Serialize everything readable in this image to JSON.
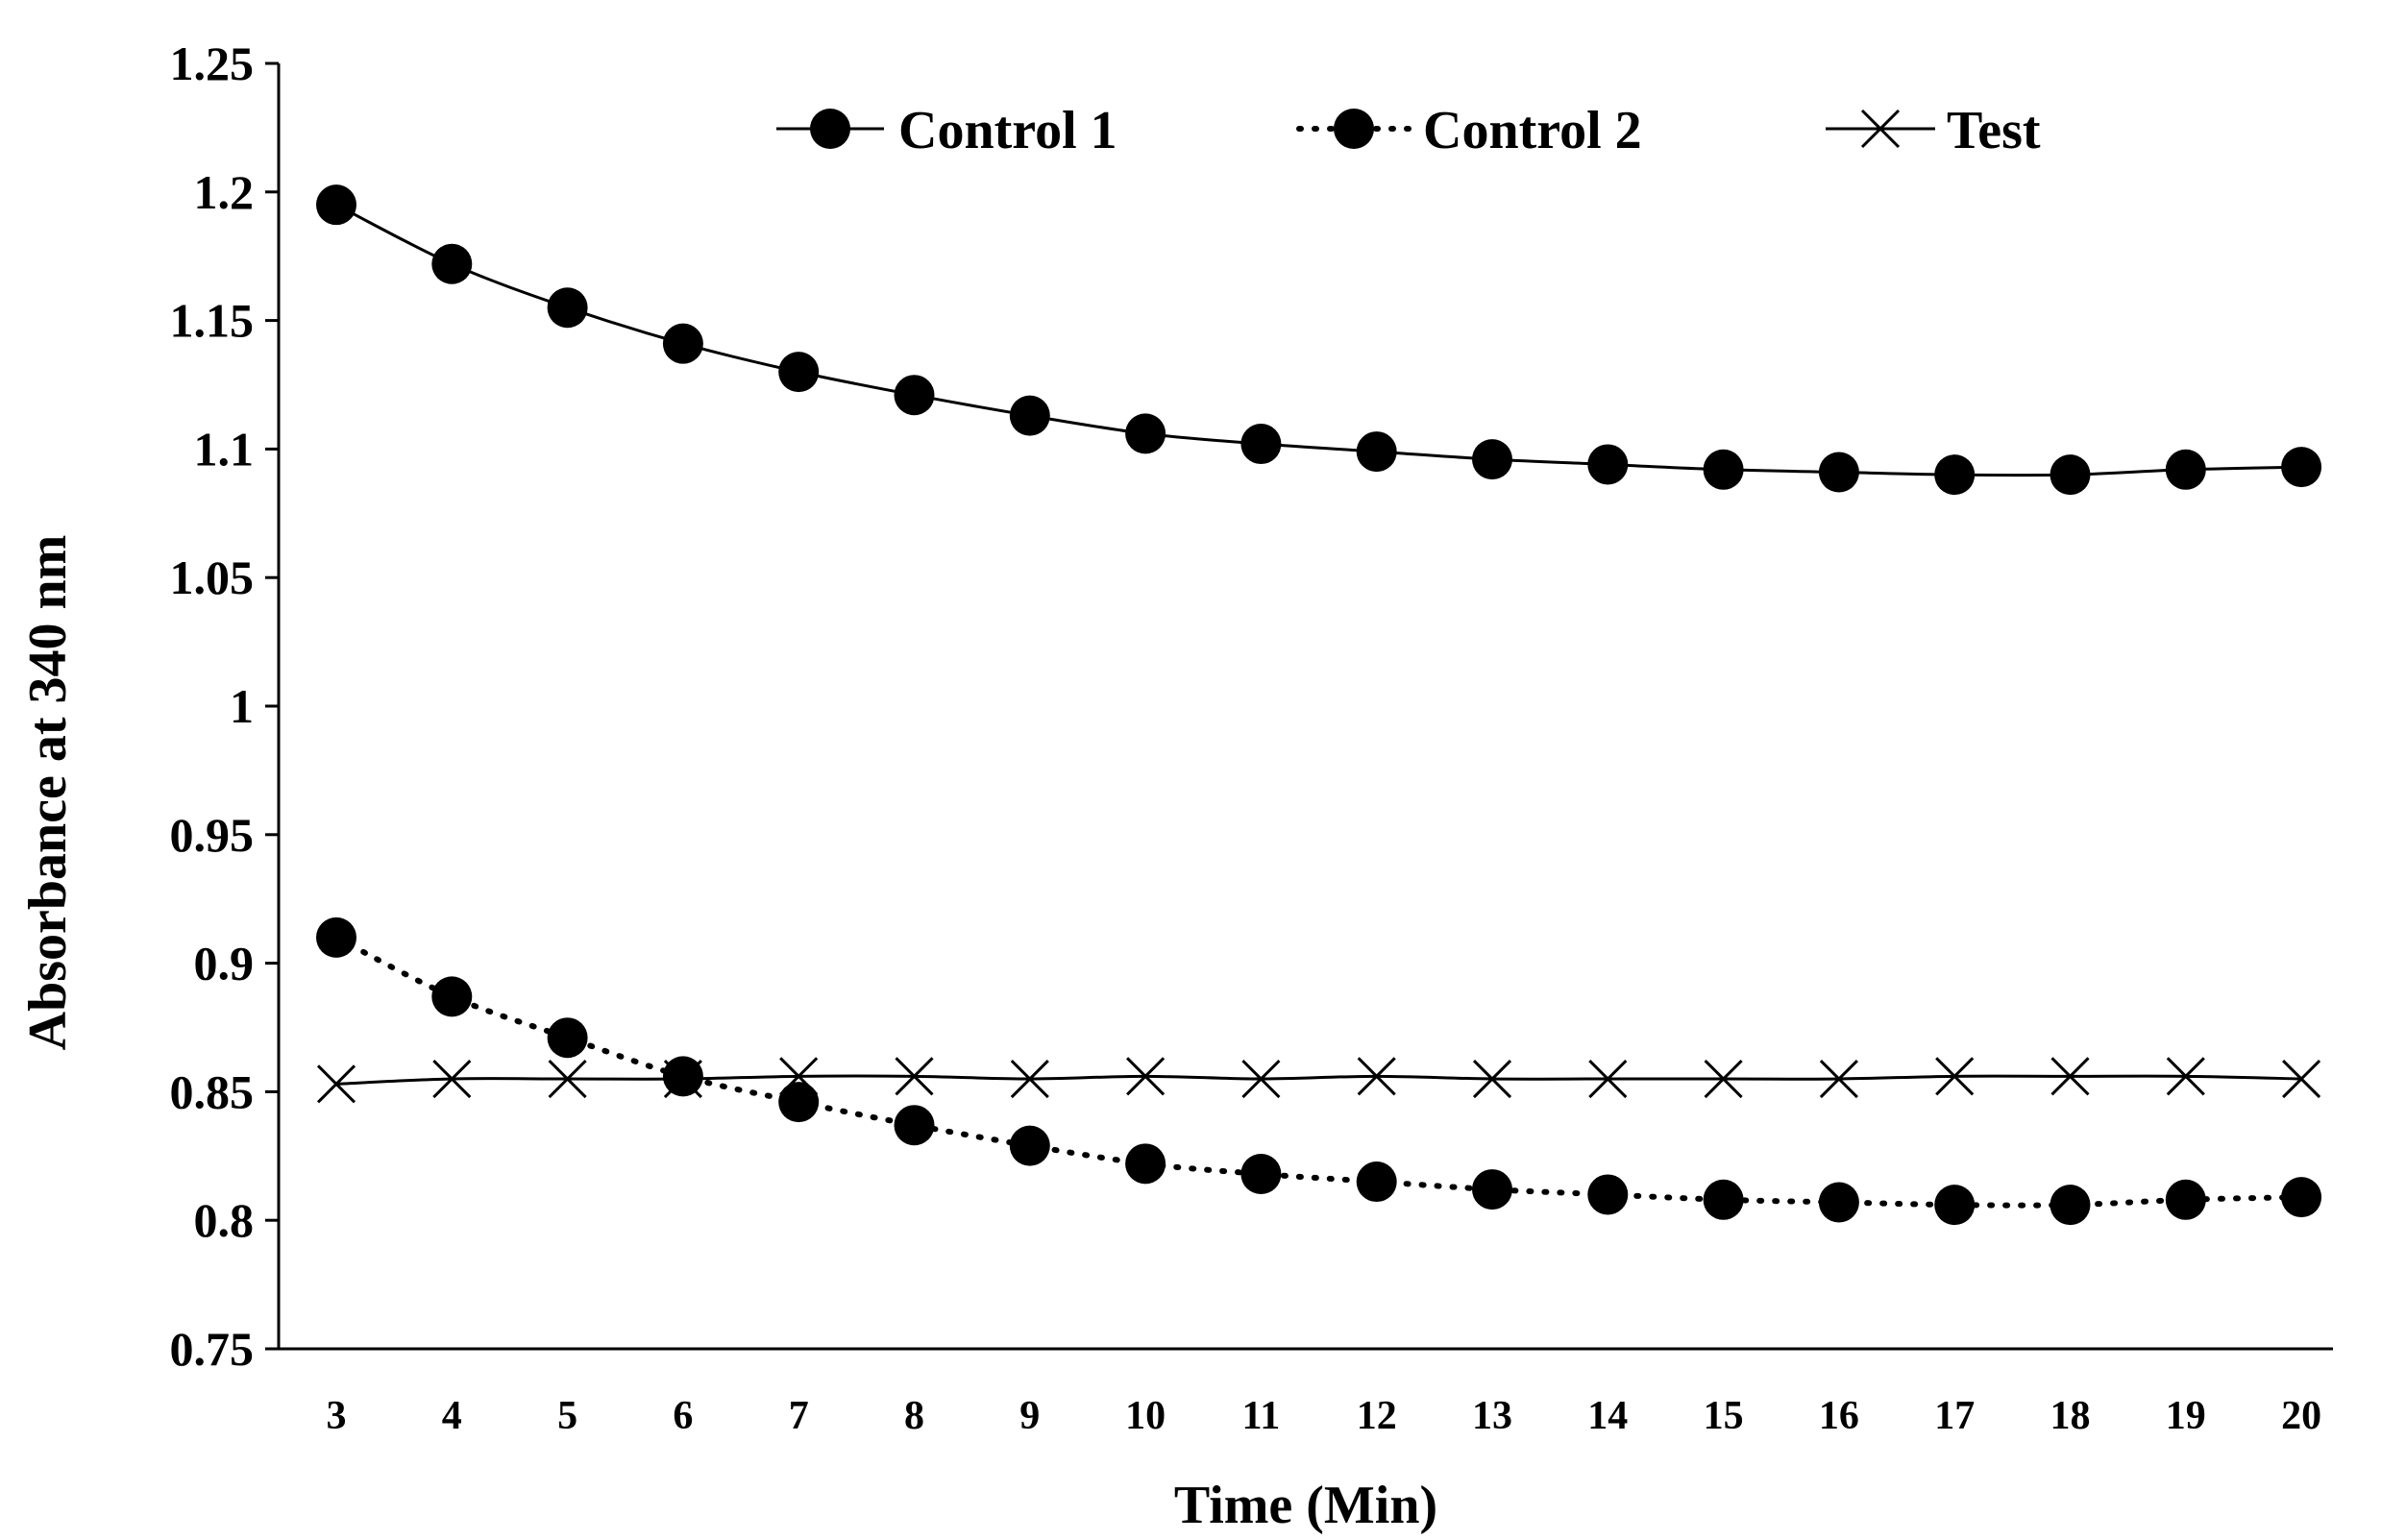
{
  "chart_data": {
    "type": "line",
    "title": "",
    "xlabel": "Time (Min)",
    "ylabel": "Absorbance at 340 nm",
    "ylim": [
      0.75,
      1.25
    ],
    "yticks": [
      "0.75",
      "0.8",
      "0.85",
      "0.9",
      "0.95",
      "1",
      "1.05",
      "1.1",
      "1.15",
      "1.2",
      "1.25"
    ],
    "categories": [
      "3",
      "4",
      "5",
      "6",
      "7",
      "8",
      "9",
      "10",
      "11",
      "12",
      "13",
      "14",
      "15",
      "16",
      "17",
      "18",
      "19",
      "20"
    ],
    "legend_position": "top",
    "grid": false,
    "series": [
      {
        "name": "Control 1",
        "line_style": "solid",
        "marker": "circle",
        "values": [
          1.195,
          1.172,
          1.155,
          1.141,
          1.13,
          1.121,
          1.113,
          1.106,
          1.102,
          1.099,
          1.096,
          1.094,
          1.092,
          1.091,
          1.09,
          1.09,
          1.092,
          1.093
        ]
      },
      {
        "name": "Control 2",
        "line_style": "dotted",
        "marker": "circle",
        "values": [
          0.91,
          0.887,
          0.871,
          0.856,
          0.846,
          0.837,
          0.829,
          0.822,
          0.818,
          0.815,
          0.812,
          0.81,
          0.808,
          0.807,
          0.806,
          0.806,
          0.808,
          0.809
        ]
      },
      {
        "name": "Test",
        "line_style": "solid",
        "marker": "x",
        "values": [
          0.853,
          0.855,
          0.855,
          0.855,
          0.856,
          0.856,
          0.855,
          0.856,
          0.855,
          0.856,
          0.855,
          0.855,
          0.855,
          0.855,
          0.856,
          0.856,
          0.856,
          0.855
        ]
      }
    ]
  }
}
